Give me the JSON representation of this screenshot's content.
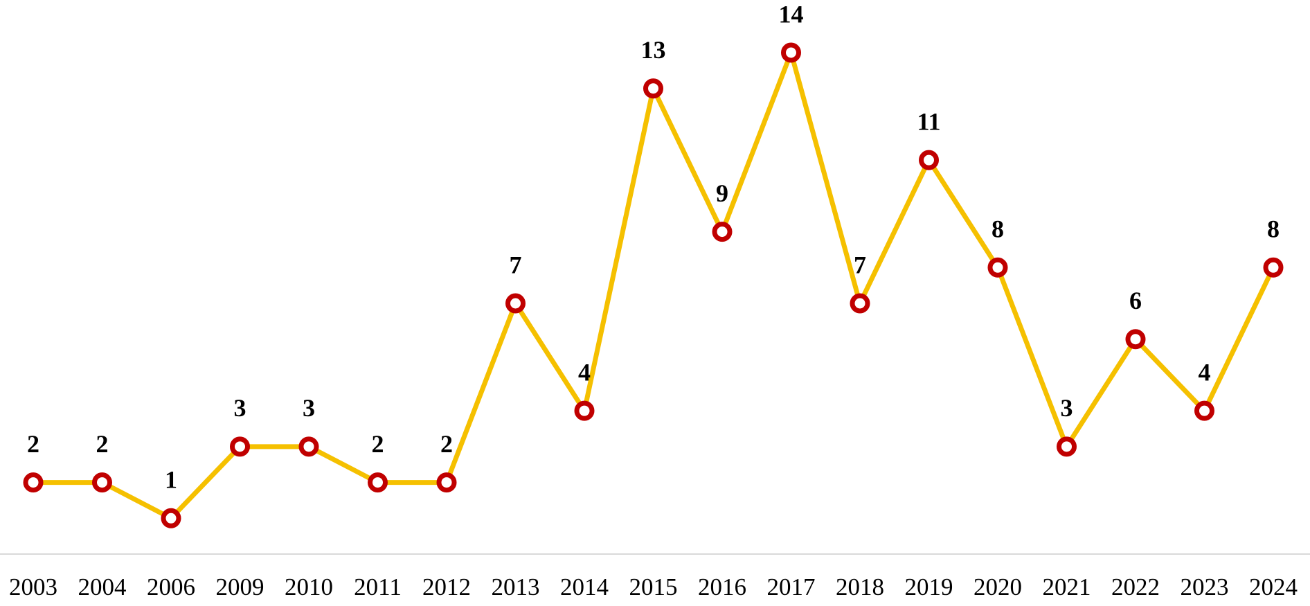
{
  "chart_data": {
    "type": "line",
    "categories": [
      "2003",
      "2004",
      "2006",
      "2009",
      "2010",
      "2011",
      "2012",
      "2013",
      "2014",
      "2015",
      "2016",
      "2017",
      "2018",
      "2019",
      "2020",
      "2021",
      "2022",
      "2023",
      "2024"
    ],
    "values": [
      2,
      2,
      1,
      3,
      3,
      2,
      2,
      7,
      4,
      13,
      9,
      14,
      7,
      11,
      8,
      3,
      6,
      4,
      8
    ],
    "color": "#f5c000",
    "marker_color": "#c00000"
  }
}
